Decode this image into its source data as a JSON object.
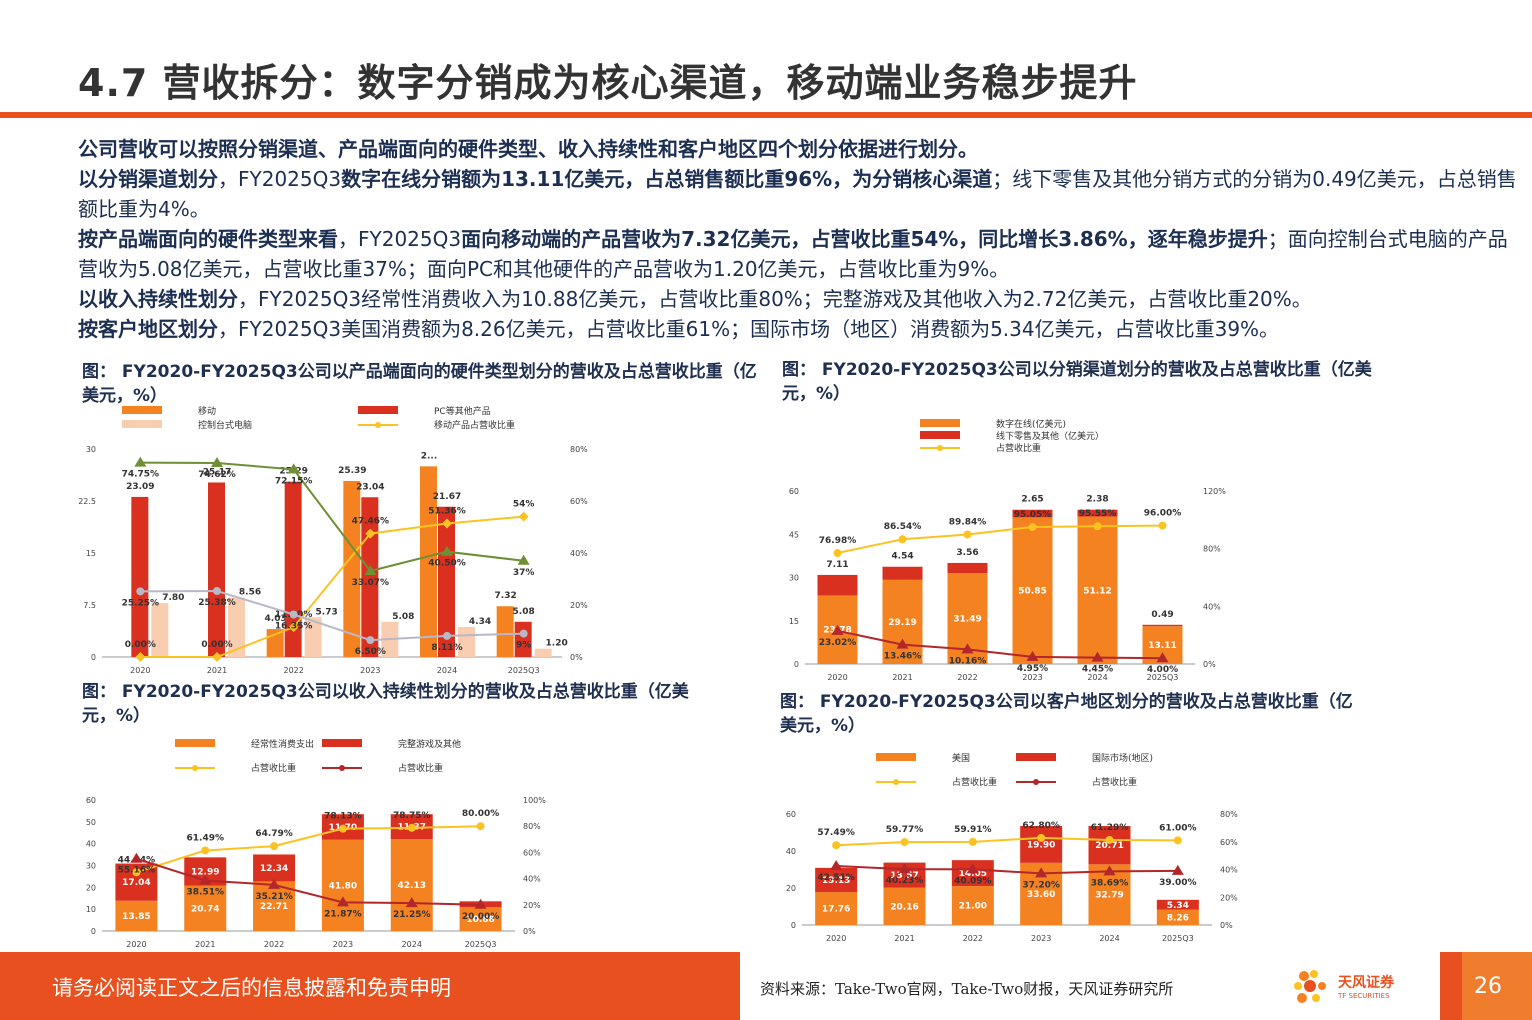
{
  "page": {
    "title": "4.7  营收拆分：数字分销成为核心渠道，移动端业务稳步提升",
    "summary": [
      [
        {
          "t": "公司营收可以按照分销渠道、产品端面向的硬件类型、收入持续性和客户地区四个划分依据进行划分。",
          "b": true
        }
      ],
      [
        {
          "t": "以分销渠道划分",
          "b": true
        },
        {
          "t": "，FY2025Q3",
          "b": false
        },
        {
          "t": "数字在线分销额为13.11亿美元，占总销售额比重96%，为分销核心渠道",
          "b": true
        },
        {
          "t": "；线下零售及其他分销方式的分销为0.49亿美元，占总销售额比重为4%。",
          "b": false
        }
      ],
      [
        {
          "t": "按产品端面向的硬件类型来看",
          "b": true
        },
        {
          "t": "，FY2025Q3",
          "b": false
        },
        {
          "t": "面向移动端的产品营收为7.32亿美元，占营收比重54%，同比增长3.86%，逐年稳步提升",
          "b": true
        },
        {
          "t": "；面向控制台式电脑的产品营收为5.08亿美元，占营收比重37%；面向PC和其他硬件的产品营收为1.20亿美元，占营收比重为9%。",
          "b": false
        }
      ],
      [
        {
          "t": "以收入持续性划分",
          "b": true
        },
        {
          "t": "，FY2025Q3经常性消费收入为10.88亿美元，占营收比重80%；完整游戏及其他收入为2.72亿美元，占营收比重20%。",
          "b": false
        }
      ],
      [
        {
          "t": "按客户地区划分",
          "b": true
        },
        {
          "t": "，FY2025Q3美国消费额为8.26亿美元，占营收比重61%；国际市场（地区）消费额为5.34亿美元，占营收比重39%。",
          "b": false
        }
      ]
    ],
    "footer_left": "请务必阅读正文之后的信息披露和免责申明",
    "footer_source": "资料来源：Take-Two官网，Take-Two财报，天风证券研究所",
    "logo_text": "天风证券",
    "logo_sub": "TF SECURITIES",
    "page_number": "26"
  },
  "colors": {
    "orange": "#f58220",
    "red": "#d9301f",
    "peach": "#f9cdb0",
    "yellow": "#fcc222",
    "green": "#6e8f33",
    "darkred": "#b3262a",
    "gray": "#b8b8c8",
    "navy": "#1f2f4f"
  },
  "chart_data": [
    {
      "id": "hardware",
      "type": "bar",
      "caption": "图： FY2020-FY2025Q3公司以产品端面向的硬件类型划分的营收及占总营收比重（亿美元，%）",
      "categories": [
        "2020",
        "2021",
        "2022",
        "2023",
        "2024",
        "2025Q3"
      ],
      "series": [
        {
          "name": "移动",
          "kind": "bar",
          "values": [
            0,
            0,
            4.03,
            25.39,
            27.5,
            7.32
          ],
          "labels": [
            "",
            "",
            "4.03",
            "25.39",
            "2...",
            "7.32"
          ]
        },
        {
          "name": "控制台式电脑",
          "kind": "bar",
          "values": [
            23.09,
            25.17,
            25.29,
            23.04,
            21.67,
            5.08
          ],
          "labels": [
            "23.09",
            "25.17",
            "25.29",
            "23.04",
            "21.67",
            "5.08"
          ]
        },
        {
          "name": "PC等其他产品",
          "kind": "bar",
          "values": [
            7.8,
            8.56,
            5.73,
            5.08,
            4.34,
            1.2
          ],
          "labels": [
            "7.80",
            "8.56",
            "5.73",
            "5.08",
            "4.34",
            "1.20"
          ]
        },
        {
          "name": "移动产品占营收比重",
          "kind": "line",
          "values": [
            0.0,
            0.0,
            11.5,
            47.46,
            51.36,
            54
          ],
          "labels": [
            "0.00%",
            "0.00%",
            "11.50%",
            "47.46%",
            "51.36%",
            "54%"
          ]
        },
        {
          "name": "",
          "kind": "line",
          "values": [
            74.75,
            74.62,
            72.15,
            33.07,
            40.5,
            37
          ],
          "labels": [
            "74.75%",
            "74.62%",
            "72.15%",
            "33.07%",
            "40.50%",
            "37%"
          ]
        },
        {
          "name": "",
          "kind": "line",
          "values": [
            25.25,
            25.38,
            16.35,
            6.5,
            8.11,
            9
          ],
          "labels": [
            "25.25%",
            "25.38%",
            "16.35%",
            "6.50%",
            "8.11%",
            "9%"
          ]
        }
      ],
      "ylim": [
        0,
        30
      ],
      "yticks": [
        "0",
        "7.5",
        "15",
        "22.5",
        "30"
      ],
      "y2lim": [
        0,
        80
      ],
      "y2ticks": [
        "0%",
        "20%",
        "40%",
        "60%",
        "80%"
      ],
      "legend": "top"
    },
    {
      "id": "channel",
      "type": "bar",
      "caption": "图： FY2020-FY2025Q3公司以分销渠道划分的营收及占总营收比重（亿美元，%）",
      "categories": [
        "2020",
        "2021",
        "2022",
        "2023",
        "2024",
        "2025Q3"
      ],
      "series": [
        {
          "name": "数字在线(亿美元)",
          "kind": "bar",
          "values": [
            23.78,
            29.19,
            31.49,
            50.85,
            51.12,
            13.11
          ],
          "labels": [
            "23.78",
            "29.19",
            "31.49",
            "50.85",
            "51.12",
            "13.11"
          ]
        },
        {
          "name": "线下零售及其他（亿美元）",
          "kind": "bar",
          "values": [
            7.11,
            4.54,
            3.56,
            2.65,
            2.38,
            0.49
          ],
          "labels": [
            "7.11",
            "4.54",
            "3.56",
            "2.65",
            "2.38",
            "0.49"
          ]
        },
        {
          "name": "占营收比重",
          "kind": "line",
          "values": [
            76.98,
            86.54,
            89.84,
            95.05,
            95.55,
            96.0
          ],
          "labels": [
            "76.98%",
            "86.54%",
            "89.84%",
            "95.05%",
            "95.55%",
            "96.00%"
          ]
        },
        {
          "name": "",
          "kind": "line",
          "values": [
            23.02,
            13.46,
            10.16,
            4.95,
            4.45,
            4.0
          ],
          "labels": [
            "23.02%",
            "13.46%",
            "10.16%",
            "4.95%",
            "4.45%",
            "4.00%"
          ]
        }
      ],
      "ylim": [
        0,
        60
      ],
      "yticks": [
        "0",
        "15",
        "30",
        "45",
        "60"
      ],
      "y2lim": [
        0,
        120
      ],
      "y2ticks": [
        "0%",
        "40%",
        "80%",
        "120%"
      ],
      "legend": "top"
    },
    {
      "id": "recurring",
      "type": "bar",
      "caption": "图： FY2020-FY2025Q3公司以收入持续性划分的营收及占总营收比重（亿美元，%）",
      "categories": [
        "2020",
        "2021",
        "2022",
        "2023",
        "2024",
        "2025Q3"
      ],
      "series": [
        {
          "name": "经常性消费支出",
          "kind": "bar",
          "values": [
            13.85,
            20.74,
            22.71,
            41.8,
            42.13,
            10.88
          ],
          "labels": [
            "13.85",
            "20.74",
            "22.71",
            "41.80",
            "42.13",
            "10.88"
          ]
        },
        {
          "name": "完整游戏及其他",
          "kind": "bar",
          "values": [
            17.04,
            12.99,
            12.34,
            11.7,
            11.37,
            2.72
          ],
          "labels": [
            "17.04",
            "12.99",
            "12.34",
            "11.70",
            "11.37",
            ""
          ]
        },
        {
          "name": "占营收比重",
          "kind": "line",
          "values": [
            44.84,
            61.49,
            64.79,
            78.13,
            78.75,
            80.0
          ],
          "labels": [
            "44.84%",
            "61.49%",
            "64.79%",
            "78.13%",
            "78.75%",
            "80.00%"
          ]
        },
        {
          "name": "占营收比重",
          "kind": "line",
          "values": [
            55.16,
            38.51,
            35.21,
            21.87,
            21.25,
            20.0
          ],
          "labels": [
            "55.16%",
            "38.51%",
            "35.21%",
            "21.87%",
            "21.25%",
            "20.00%"
          ]
        }
      ],
      "ylim": [
        0,
        60
      ],
      "yticks": [
        "0",
        "10",
        "20",
        "30",
        "40",
        "50",
        "60"
      ],
      "y2lim": [
        0,
        100
      ],
      "y2ticks": [
        "0%",
        "20%",
        "40%",
        "60%",
        "80%",
        "100%"
      ],
      "legend": "top"
    },
    {
      "id": "region",
      "type": "bar",
      "caption": "图： FY2020-FY2025Q3公司以客户地区划分的营收及占总营收比重（亿美元，%）",
      "categories": [
        "2020",
        "2021",
        "2022",
        "2023",
        "2024",
        "2025Q3"
      ],
      "series": [
        {
          "name": "美国",
          "kind": "bar",
          "values": [
            17.76,
            20.16,
            21.0,
            33.6,
            32.79,
            8.26
          ],
          "labels": [
            "17.76",
            "20.16",
            "21.00",
            "33.60",
            "32.79",
            "8.26"
          ]
        },
        {
          "name": "国际市场(地区)",
          "kind": "bar",
          "values": [
            13.13,
            13.57,
            14.05,
            19.9,
            20.71,
            5.34
          ],
          "labels": [
            "13.13",
            "13.57",
            "14.05",
            "19.90",
            "20.71",
            "5.34"
          ]
        },
        {
          "name": "占营收比重",
          "kind": "line",
          "values": [
            57.49,
            59.77,
            59.91,
            62.8,
            61.29,
            61.0
          ],
          "labels": [
            "57.49%",
            "59.77%",
            "59.91%",
            "62.80%",
            "61.29%",
            "61.00%"
          ]
        },
        {
          "name": "占营收比重",
          "kind": "line",
          "values": [
            42.51,
            40.23,
            40.09,
            37.2,
            38.69,
            39.0
          ],
          "labels": [
            "42.51%",
            "40.23%",
            "40.09%",
            "37.20%",
            "38.69%",
            "39.00%"
          ]
        }
      ],
      "ylim": [
        0,
        60
      ],
      "yticks": [
        "0",
        "20",
        "40",
        "60"
      ],
      "y2lim": [
        0,
        80
      ],
      "y2ticks": [
        "0%",
        "20%",
        "40%",
        "60%",
        "80%"
      ],
      "legend": "top"
    }
  ]
}
